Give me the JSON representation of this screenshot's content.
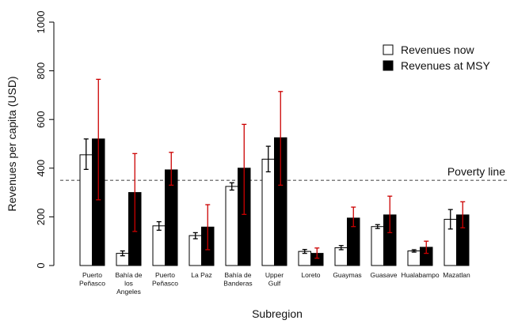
{
  "chart_data": {
    "type": "bar",
    "xlabel": "Subregion",
    "ylabel": "Revenues per capita (USD)",
    "ylim": [
      0,
      1000
    ],
    "yticks": [
      0,
      200,
      400,
      600,
      800,
      1000
    ],
    "categories": [
      [
        "Puerto",
        "Peñasco"
      ],
      [
        "Bahía de",
        "los",
        "Angeles"
      ],
      [
        "Puerto",
        "Peñasco"
      ],
      [
        "La Paz"
      ],
      [
        "Bahía de",
        "Banderas"
      ],
      [
        "Upper",
        "Gulf"
      ],
      [
        "Loreto"
      ],
      [
        "Guaymas"
      ],
      [
        "Guasave"
      ],
      [
        "Hualabampo"
      ],
      [
        "Mazatlan"
      ]
    ],
    "series": [
      {
        "name": "Revenues now",
        "fill": "#ffffff",
        "error_color": "#000000",
        "values": [
          455,
          50,
          163,
          123,
          325,
          437,
          58,
          73,
          160,
          60,
          190
        ],
        "errors": [
          [
            395,
            520
          ],
          [
            40,
            60
          ],
          [
            145,
            180
          ],
          [
            110,
            135
          ],
          [
            310,
            340
          ],
          [
            385,
            490
          ],
          [
            50,
            66
          ],
          [
            65,
            82
          ],
          [
            152,
            168
          ],
          [
            55,
            65
          ],
          [
            150,
            230
          ]
        ]
      },
      {
        "name": "Revenues at MSY",
        "fill": "#000000",
        "error_color": "#cc0000",
        "values": [
          520,
          300,
          393,
          158,
          400,
          525,
          50,
          195,
          208,
          75,
          208
        ],
        "errors": [
          [
            270,
            765
          ],
          [
            140,
            460
          ],
          [
            330,
            465
          ],
          [
            65,
            250
          ],
          [
            210,
            580
          ],
          [
            330,
            715
          ],
          [
            30,
            72
          ],
          [
            160,
            240
          ],
          [
            135,
            285
          ],
          [
            50,
            100
          ],
          [
            155,
            262
          ]
        ]
      }
    ],
    "reference_line": {
      "value": 350,
      "label": "Poverty line"
    },
    "legend": {
      "position": "top-right"
    },
    "grid": false
  }
}
